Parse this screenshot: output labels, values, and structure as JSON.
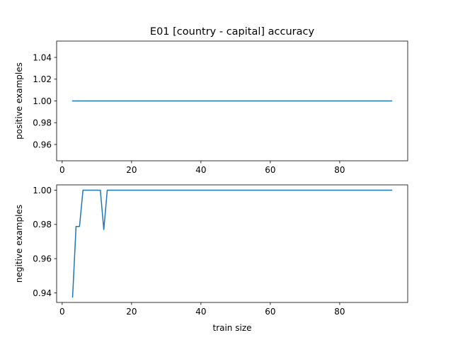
{
  "figure": {
    "title": "E01 [country - capital] accuracy"
  },
  "chart_data": [
    {
      "type": "line",
      "title": "E01 [country - capital] accuracy",
      "xlabel": "",
      "ylabel": "positive examples",
      "xlim": [
        -1.6,
        99.6
      ],
      "ylim": [
        0.945,
        1.055
      ],
      "xticks": [
        0,
        20,
        40,
        60,
        80
      ],
      "xtick_labels": [
        "0",
        "20",
        "40",
        "60",
        "80"
      ],
      "yticks": [
        0.96,
        0.98,
        1.0,
        1.02,
        1.04
      ],
      "ytick_labels": [
        "0.96",
        "0.98",
        "1.00",
        "1.02",
        "1.04"
      ],
      "grid": false,
      "color": "#1f77b4",
      "series": [
        {
          "x": [
            3,
            95
          ],
          "y": [
            1.0,
            1.0
          ]
        }
      ]
    },
    {
      "type": "line",
      "xlabel": "train size",
      "ylabel": "negitive examples",
      "xlim": [
        -1.6,
        99.6
      ],
      "ylim": [
        0.9344,
        1.0031
      ],
      "xticks": [
        0,
        20,
        40,
        60,
        80
      ],
      "xtick_labels": [
        "0",
        "20",
        "40",
        "60",
        "80"
      ],
      "yticks": [
        0.94,
        0.96,
        0.98,
        1.0
      ],
      "ytick_labels": [
        "0.94",
        "0.96",
        "0.98",
        "1.00"
      ],
      "grid": false,
      "color": "#1f77b4",
      "series": [
        {
          "x": [
            3,
            4,
            5,
            6,
            7,
            8,
            9,
            10,
            11,
            12,
            13,
            14,
            15,
            20,
            30,
            40,
            50,
            60,
            70,
            80,
            90,
            95
          ],
          "y": [
            0.9375,
            0.9788,
            0.9788,
            1.0,
            1.0,
            1.0,
            1.0,
            1.0,
            1.0,
            0.977,
            1.0,
            1.0,
            1.0,
            1.0,
            1.0,
            1.0,
            1.0,
            1.0,
            1.0,
            1.0,
            1.0,
            1.0
          ]
        }
      ]
    }
  ]
}
